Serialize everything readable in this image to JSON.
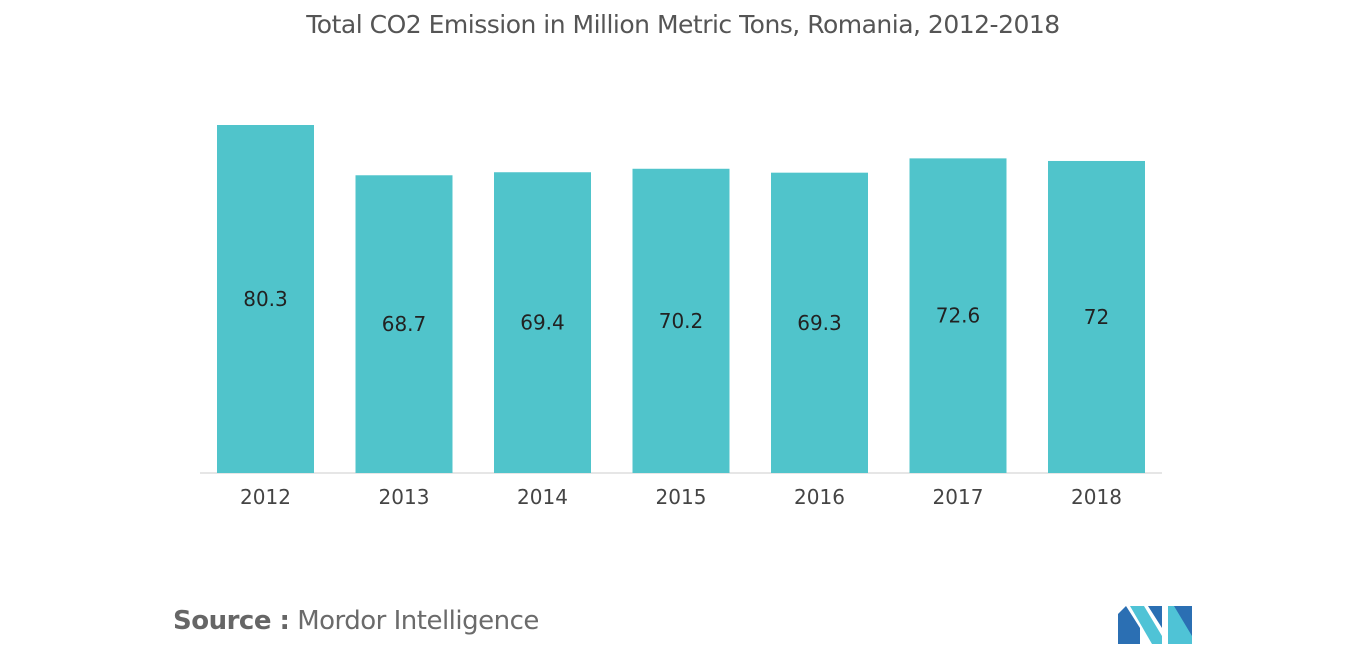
{
  "chart_data": {
    "type": "bar",
    "title": "Total CO2 Emission in Million Metric Tons, Romania, 2012-2018",
    "xlabel": "",
    "ylabel": "",
    "categories": [
      "2012",
      "2013",
      "2014",
      "2015",
      "2016",
      "2017",
      "2018"
    ],
    "values": [
      80.3,
      68.7,
      69.4,
      70.2,
      69.3,
      72.6,
      72
    ],
    "value_labels": [
      "80.3",
      "68.7",
      "69.4",
      "70.2",
      "69.3",
      "72.6",
      "72"
    ],
    "ylim": [
      0,
      80.3
    ],
    "grid": false,
    "bar_color": "#50c4cb",
    "axis_color": "#cccccc"
  },
  "footer": {
    "source_label": "Source :",
    "source_text": "Mordor Intelligence"
  },
  "logo": {
    "icon": "mordor-intelligence-logo-icon",
    "colors": [
      "#2b6fb3",
      "#4fc3d6"
    ]
  }
}
